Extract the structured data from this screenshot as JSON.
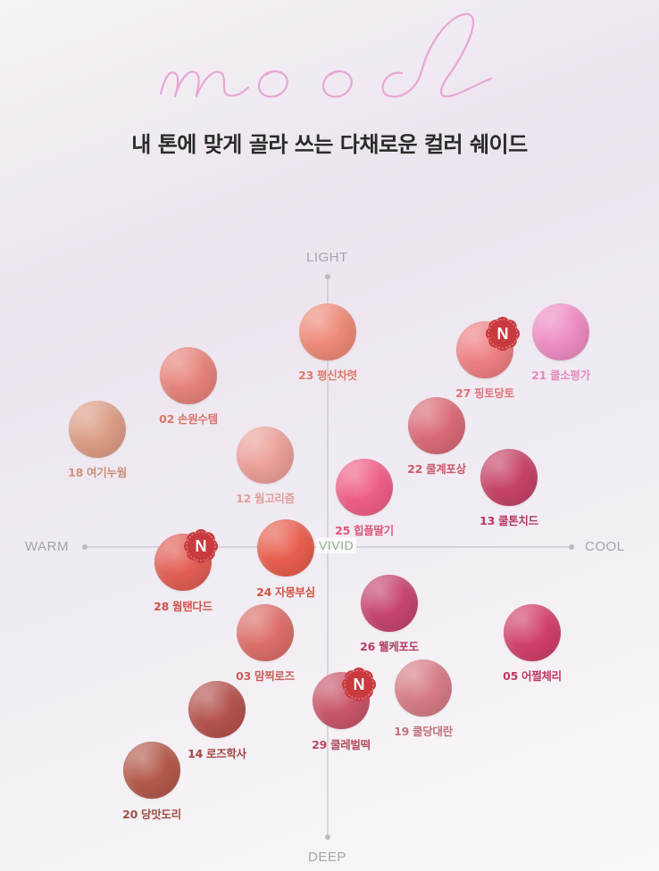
{
  "logo_text": "mood",
  "subtitle": "내 톤에 맞게 골라 쓰는 다채로운 컬러 쉐이드",
  "axes": {
    "top": "LIGHT",
    "bottom": "DEEP",
    "left": "WARM",
    "right": "COOL",
    "center": "VIVID"
  },
  "new_badge_text": "N",
  "colors": {
    "logo": "#e8a6d6",
    "badge": "#c93a3e",
    "axis_line": "#c9c4cc"
  },
  "shades": [
    {
      "label": "23 평신차렷",
      "color": "#ee8a78",
      "label_color": "#e07a6c",
      "is_new": false
    },
    {
      "label": "27 핑토당토",
      "color": "#ee7f82",
      "label_color": "#e0737a",
      "is_new": true
    },
    {
      "label": "21 쿨소평가",
      "color": "#ee8cc4",
      "label_color": "#e48abd",
      "is_new": false
    },
    {
      "label": "02 손원수템",
      "color": "#e6837a",
      "label_color": "#d8756e",
      "is_new": false
    },
    {
      "label": "18 여기누웜",
      "color": "#dc9d86",
      "label_color": "#c9907c",
      "is_new": false
    },
    {
      "label": "12 웜고리즘",
      "color": "#ec9f98",
      "label_color": "#e0a09a",
      "is_new": false
    },
    {
      "label": "22 쿨계포상",
      "color": "#d96a76",
      "label_color": "#c85a68",
      "is_new": false
    },
    {
      "label": "25 힙플딸기",
      "color": "#ef5f86",
      "label_color": "#e0567c",
      "is_new": false
    },
    {
      "label": "13 쿨톤치드",
      "color": "#c64367",
      "label_color": "#b83a60",
      "is_new": false
    },
    {
      "label": "28 웜탠다드",
      "color": "#e25e55",
      "label_color": "#d0524a",
      "is_new": true
    },
    {
      "label": "24 자몽부심",
      "color": "#e85e4e",
      "label_color": "#d45446",
      "is_new": false
    },
    {
      "label": "26 웰케포도",
      "color": "#c64472",
      "label_color": "#b53c66",
      "is_new": false
    },
    {
      "label": "05 어쩔체리",
      "color": "#d1406a",
      "label_color": "#c03a60",
      "is_new": false
    },
    {
      "label": "03 맘찍로즈",
      "color": "#dc6e69",
      "label_color": "#c9605c",
      "is_new": false
    },
    {
      "label": "29 쿨레벌떡",
      "color": "#c9566a",
      "label_color": "#b24c60",
      "is_new": true
    },
    {
      "label": "19 쿨당대란",
      "color": "#d67c86",
      "label_color": "#c2707a",
      "is_new": false
    },
    {
      "label": "14 로즈학사",
      "color": "#b4524d",
      "label_color": "#a24844",
      "is_new": false
    },
    {
      "label": "20 당맛도리",
      "color": "#b35a4b",
      "label_color": "#9e4e42",
      "is_new": false
    }
  ]
}
